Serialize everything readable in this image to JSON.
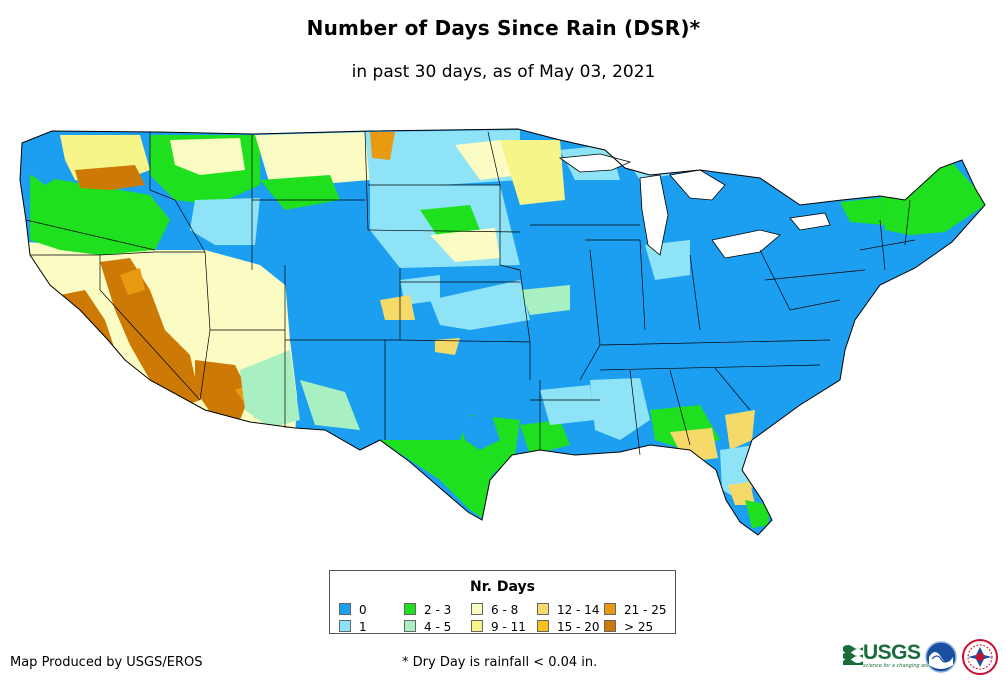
{
  "title": "Number of Days Since Rain (DSR)*",
  "subtitle": "in past 30 days, as of May 03, 2021",
  "legend": {
    "title": "Nr. Days",
    "items": [
      {
        "label": "0",
        "color": "#1c9ff0"
      },
      {
        "label": "1",
        "color": "#8fe3f7"
      },
      {
        "label": "2 - 3",
        "color": "#1ee01e"
      },
      {
        "label": "4 - 5",
        "color": "#a8f0c2"
      },
      {
        "label": "6 - 8",
        "color": "#fbfbc4"
      },
      {
        "label": "9 - 11",
        "color": "#f7f48a"
      },
      {
        "label": "12 - 14",
        "color": "#f5da6a"
      },
      {
        "label": "15 - 20",
        "color": "#f5c21d"
      },
      {
        "label": "21 - 25",
        "color": "#e89a10"
      },
      {
        "label": "> 25",
        "color": "#cc7a05"
      }
    ]
  },
  "credit": "Map Produced by USGS/EROS",
  "footnote": "* Dry Day is rainfall < 0.04 in.",
  "logos": {
    "usgs": "USGS",
    "usgs_tagline": "science for a changing world",
    "noaa": "NOAA",
    "nws": "National Weather Service"
  }
}
